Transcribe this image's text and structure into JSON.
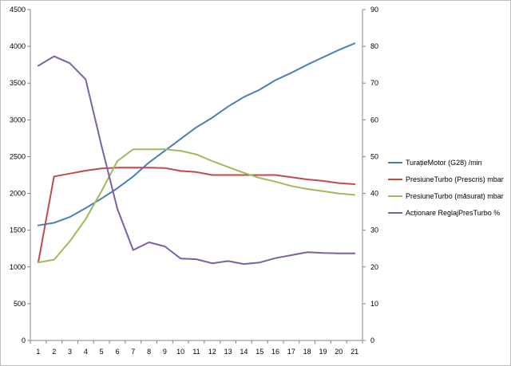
{
  "chart_data": {
    "type": "line",
    "grid": "off",
    "legend_position": "right",
    "categories": [
      "1",
      "2",
      "3",
      "4",
      "5",
      "6",
      "7",
      "8",
      "9",
      "10",
      "11",
      "12",
      "13",
      "14",
      "15",
      "16",
      "17",
      "18",
      "19",
      "20",
      "21"
    ],
    "y_left": {
      "ylim": [
        0,
        4500
      ],
      "ticks": [
        "0",
        "500",
        "1000",
        "1500",
        "2000",
        "2500",
        "3000",
        "3500",
        "4000",
        "4500"
      ]
    },
    "y_right": {
      "ylim": [
        0,
        90
      ],
      "ticks": [
        "0",
        "10",
        "20",
        "30",
        "40",
        "50",
        "60",
        "70",
        "80",
        "90"
      ]
    },
    "series": [
      {
        "name": "TurațieMotor (G28)  /min",
        "axis": "left",
        "color": "#4a7ebb",
        "values": [
          1565,
          1600,
          1680,
          1800,
          1930,
          2070,
          2230,
          2420,
          2580,
          2740,
          2900,
          3030,
          3180,
          3310,
          3410,
          3540,
          3640,
          3750,
          3850,
          3950,
          4040
        ]
      },
      {
        "name": "PresiuneTurbo (Prescris)  mbar",
        "axis": "left",
        "color": "#be4b48",
        "values": [
          1060,
          2230,
          2270,
          2310,
          2340,
          2350,
          2350,
          2350,
          2345,
          2305,
          2290,
          2250,
          2250,
          2250,
          2250,
          2250,
          2220,
          2190,
          2170,
          2140,
          2125
        ]
      },
      {
        "name": "PresiuneTurbo (măsurat)  mbar",
        "axis": "left",
        "color": "#9bbb59",
        "values": [
          1060,
          1100,
          1350,
          1650,
          2030,
          2440,
          2600,
          2600,
          2600,
          2580,
          2530,
          2440,
          2360,
          2280,
          2210,
          2160,
          2100,
          2060,
          2030,
          2000,
          1980
        ]
      },
      {
        "name": "Acționare ReglajPresTurbo  %",
        "axis": "right",
        "color": "#7d60a0",
        "values": [
          74.7,
          77.3,
          75.4,
          71.0,
          53.0,
          35.8,
          24.6,
          26.7,
          25.6,
          22.3,
          22.1,
          21.0,
          21.6,
          20.8,
          21.2,
          22.4,
          23.2,
          24.0,
          23.8,
          23.7,
          23.7
        ]
      }
    ]
  }
}
